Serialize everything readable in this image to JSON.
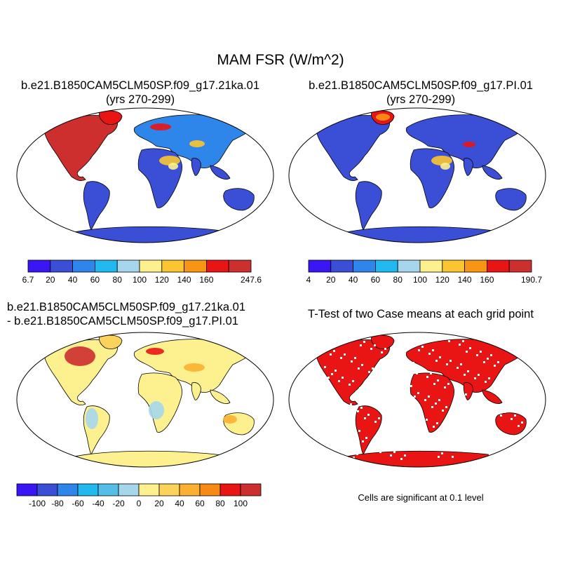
{
  "title": "MAM FSR (W/m^2)",
  "panels": [
    {
      "id": "case1",
      "title_lines": [
        "b.e21.B1850CAM5CLM50SP.f09_g17.21ka.01",
        "(yrs 270-299)"
      ],
      "colorbar": {
        "labels": [
          "6.7",
          "20",
          "40",
          "60",
          "80",
          "100",
          "120",
          "140",
          "160",
          "",
          "247.6"
        ],
        "colors": [
          "#3b16f4",
          "#3b4fd6",
          "#2f86ea",
          "#22b9f0",
          "#a6d6ec",
          "#fdf08e",
          "#fbc531",
          "#f89514",
          "#e91414",
          "#cd2e2e"
        ]
      }
    },
    {
      "id": "case2",
      "title_lines": [
        "b.e21.B1850CAM5CLM50SP.f09_g17.PI.01",
        "(yrs 270-299)"
      ],
      "colorbar": {
        "labels": [
          "4",
          "20",
          "40",
          "60",
          "80",
          "100",
          "120",
          "140",
          "160",
          "",
          "190.7"
        ],
        "colors": [
          "#3b16f4",
          "#3b4fd6",
          "#2f86ea",
          "#22b9f0",
          "#a6d6ec",
          "#fdf08e",
          "#fbc531",
          "#f89514",
          "#e91414",
          "#cd2e2e"
        ]
      }
    },
    {
      "id": "diff",
      "title_lines": [
        "b.e21.B1850CAM5CLM50SP.f09_g17.21ka.01",
        "- b.e21.B1850CAM5CLM50SP.f09_g17.PI.01"
      ],
      "colorbar": {
        "labels": [
          "",
          "-100",
          "-80",
          "-60",
          "-40",
          "-20",
          "0",
          "20",
          "40",
          "60",
          "80",
          "100",
          ""
        ],
        "colors": [
          "#3b16f4",
          "#3b4fd6",
          "#2f86ea",
          "#22b9f0",
          "#56bde6",
          "#a6d6ec",
          "#fdf08e",
          "#fbd25a",
          "#fbb031",
          "#f78a14",
          "#e91414",
          "#cd2e2e"
        ]
      }
    },
    {
      "id": "ttest",
      "title_lines": [
        "T-Test of two Case means at each grid point"
      ],
      "note": "Cells are significant at 0.1 level"
    }
  ]
}
